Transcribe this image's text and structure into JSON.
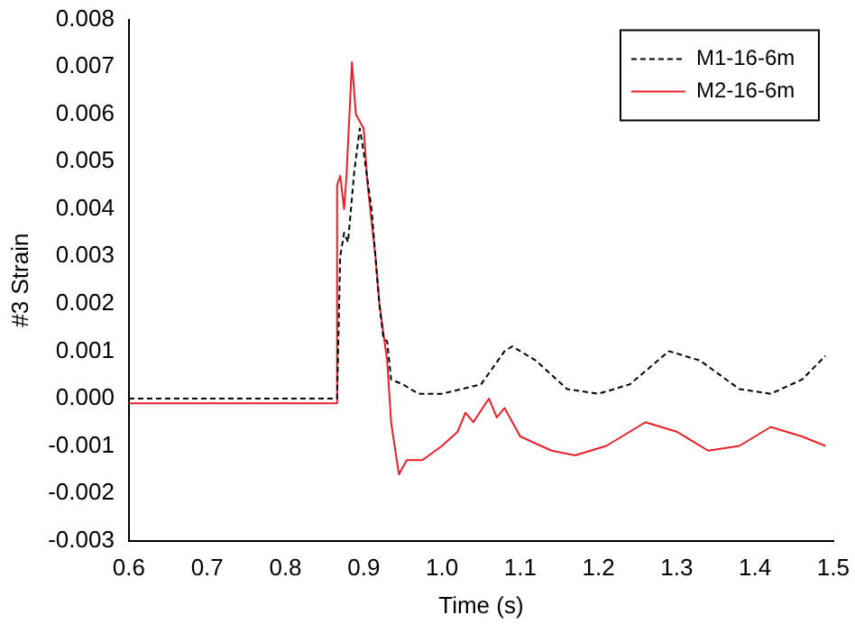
{
  "chart_data": {
    "type": "line",
    "xlabel": "Time (s)",
    "ylabel": "#3 Strain",
    "xlim": [
      0.6,
      1.5
    ],
    "xticks": [
      0.6,
      0.7,
      0.8,
      0.9,
      {
        "value": 1.0,
        "label": "1.0"
      },
      1.1,
      1.2,
      1.3,
      1.4,
      1.5
    ],
    "ylim": [
      -0.003,
      0.008
    ],
    "yticks": [
      -0.003,
      -0.002,
      -0.001,
      {
        "value": 0.0,
        "label": "0.000"
      },
      0.001,
      0.002,
      0.003,
      0.004,
      0.005,
      0.006,
      0.007,
      0.008
    ],
    "grid": false,
    "legend": "top right",
    "marker": "none",
    "series": [
      {
        "name": "M1-16-6m",
        "color": "#000000",
        "line_style": "dashed",
        "x": [
          0.6,
          0.7,
          0.8,
          0.866,
          0.87,
          0.875,
          0.88,
          0.888,
          0.895,
          0.9,
          0.91,
          0.92,
          0.925,
          0.93,
          0.935,
          0.95,
          0.97,
          1.0,
          1.05,
          1.08,
          1.09,
          1.12,
          1.16,
          1.2,
          1.24,
          1.29,
          1.33,
          1.38,
          1.42,
          1.46,
          1.49
        ],
        "values": [
          0.0,
          0.0,
          0.0,
          0.0,
          0.003,
          0.0035,
          0.0033,
          0.0048,
          0.0057,
          0.0052,
          0.004,
          0.002,
          0.0013,
          0.0012,
          0.0004,
          0.0003,
          0.0001,
          0.0001,
          0.0003,
          0.001,
          0.0011,
          0.0008,
          0.0002,
          0.0001,
          0.0003,
          0.001,
          0.0008,
          0.0002,
          0.0001,
          0.0004,
          0.0009
        ]
      },
      {
        "name": "M2-16-6m",
        "color": "#e8202a",
        "line_style": "solid",
        "x": [
          0.6,
          0.7,
          0.8,
          0.864,
          0.866,
          0.87,
          0.875,
          0.878,
          0.885,
          0.89,
          0.9,
          0.905,
          0.915,
          0.92,
          0.93,
          0.935,
          0.945,
          0.955,
          0.975,
          1.0,
          1.02,
          1.03,
          1.04,
          1.06,
          1.07,
          1.08,
          1.1,
          1.14,
          1.17,
          1.21,
          1.26,
          1.3,
          1.34,
          1.38,
          1.42,
          1.46,
          1.49
        ],
        "values": [
          -0.0001,
          -0.0001,
          -0.0001,
          -0.0001,
          0.0045,
          0.0047,
          0.004,
          0.0047,
          0.0071,
          0.006,
          0.0057,
          0.0045,
          0.003,
          0.002,
          0.0008,
          -0.0005,
          -0.0016,
          -0.0013,
          -0.0013,
          -0.001,
          -0.0007,
          -0.0003,
          -0.0005,
          0.0,
          -0.0004,
          -0.0002,
          -0.0008,
          -0.0011,
          -0.0012,
          -0.001,
          -0.0005,
          -0.0007,
          -0.0011,
          -0.001,
          -0.0006,
          -0.0008,
          -0.001
        ]
      }
    ]
  }
}
